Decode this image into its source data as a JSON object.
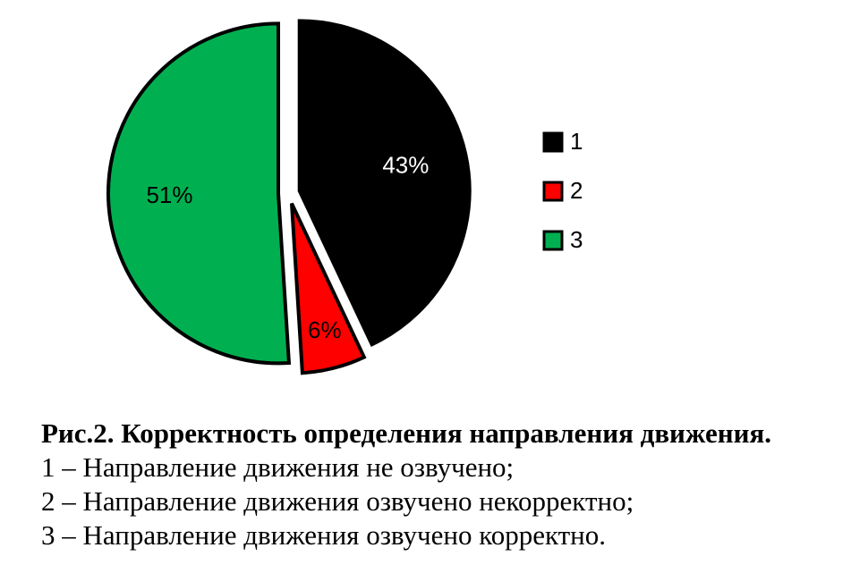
{
  "chart_data": {
    "type": "pie",
    "title": "",
    "slices": [
      {
        "label": "1",
        "value": 43,
        "data_label": "43%",
        "color": "#000000",
        "label_color": "#ffffff"
      },
      {
        "label": "2",
        "value": 6,
        "data_label": "6%",
        "color": "#ff0000",
        "label_color": "#000000"
      },
      {
        "label": "3",
        "value": 51,
        "data_label": "51%",
        "color": "#00b050",
        "label_color": "#000000"
      }
    ],
    "exploded": true,
    "legend_position": "right"
  },
  "caption": {
    "title": "Рис.2. Корректность определения направления движения.",
    "lines": [
      "1 – Направление движения не озвучено;",
      "2 – Направление движения озвучено некорректно;",
      "3 – Направление движения озвучено корректно."
    ]
  }
}
